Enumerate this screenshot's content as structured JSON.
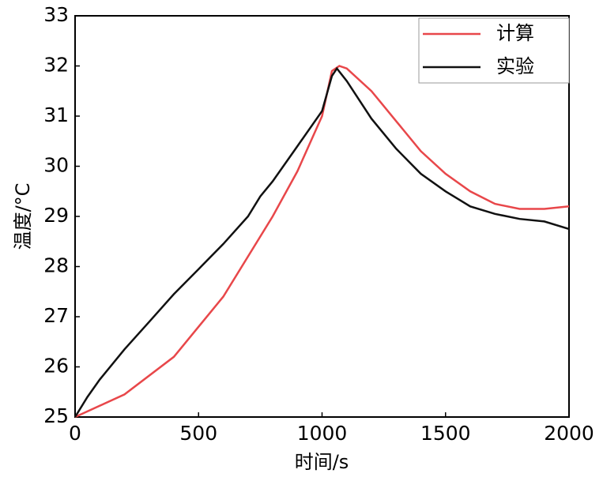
{
  "chart_data": {
    "type": "line",
    "x_label": "时间/s",
    "y_label": "温度/°C",
    "xlim": [
      0,
      2000
    ],
    "xticks": [
      0,
      500,
      1000,
      1500,
      2000
    ],
    "ylim": [
      25,
      33
    ],
    "yticks": [
      25,
      26,
      27,
      28,
      29,
      30,
      31,
      32,
      33
    ],
    "legend": "upper right",
    "series": [
      {
        "name": "计算",
        "color": "#e8474a",
        "x": [
          0,
          200,
          400,
          600,
          800,
          900,
          1000,
          1040,
          1070,
          1100,
          1200,
          1300,
          1400,
          1500,
          1600,
          1700,
          1800,
          1900,
          2000
        ],
        "values": [
          25,
          25.45,
          26.2,
          27.4,
          29.0,
          29.9,
          31.0,
          31.9,
          32.0,
          31.95,
          31.5,
          30.9,
          30.3,
          29.85,
          29.5,
          29.25,
          29.15,
          29.15,
          29.2
        ]
      },
      {
        "name": "实验",
        "color": "#111111",
        "x": [
          0,
          50,
          100,
          200,
          300,
          400,
          500,
          600,
          700,
          750,
          800,
          900,
          1000,
          1040,
          1060,
          1100,
          1200,
          1300,
          1400,
          1500,
          1600,
          1700,
          1800,
          1900,
          2000
        ],
        "values": [
          25,
          25.4,
          25.75,
          26.35,
          26.9,
          27.45,
          27.95,
          28.45,
          29.0,
          29.4,
          29.7,
          30.4,
          31.1,
          31.8,
          31.95,
          31.7,
          30.95,
          30.35,
          29.85,
          29.5,
          29.2,
          29.05,
          28.95,
          28.9,
          28.75
        ]
      }
    ]
  }
}
